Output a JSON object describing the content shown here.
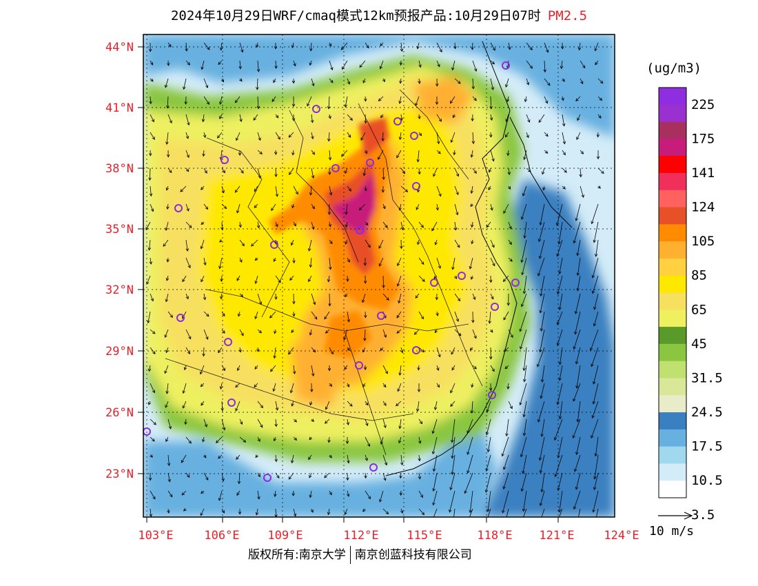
{
  "title": {
    "main": "2024年10月29日WRF/cmaq模式12km预报产品:10月29日07时",
    "variable": "PM2.5"
  },
  "colors": {
    "variable_title": "#e8202a",
    "axis_labels": "#e8202a",
    "station_marker": "#8a2be2"
  },
  "legend": {
    "unit": "(ug/m3)",
    "colors": [
      "#8f2ee0",
      "#9b30d0",
      "#a83060",
      "#c81c7a",
      "#ff0000",
      "#f0305a",
      "#ff6060",
      "#e85028",
      "#ff8c00",
      "#ffb030",
      "#ffd040",
      "#ffe800",
      "#f7e060",
      "#eef060",
      "#5a9a2a",
      "#8ac640",
      "#c0e070",
      "#d8e898",
      "#e8ecc8",
      "#3a80c0",
      "#68b0e0",
      "#a0d8f0",
      "#d4ecf8",
      "#ffffff"
    ],
    "labels": [
      "225",
      "175",
      "141",
      "124",
      "105",
      "85",
      "65",
      "45",
      "31.5",
      "24.5",
      "17.5",
      "10.5",
      "3.5"
    ]
  },
  "axes": {
    "lat_labels": [
      "44°N",
      "41°N",
      "38°N",
      "35°N",
      "32°N",
      "29°N",
      "26°N",
      "23°N"
    ],
    "lon_labels": [
      "103°E",
      "106°E",
      "109°E",
      "112°E",
      "115°E",
      "118°E",
      "121°E",
      "124°E"
    ]
  },
  "wind_reference": "10 m/s",
  "copyright": {
    "left": "版权所有:南京大学",
    "right": "南京创蓝科技有限公司"
  }
}
